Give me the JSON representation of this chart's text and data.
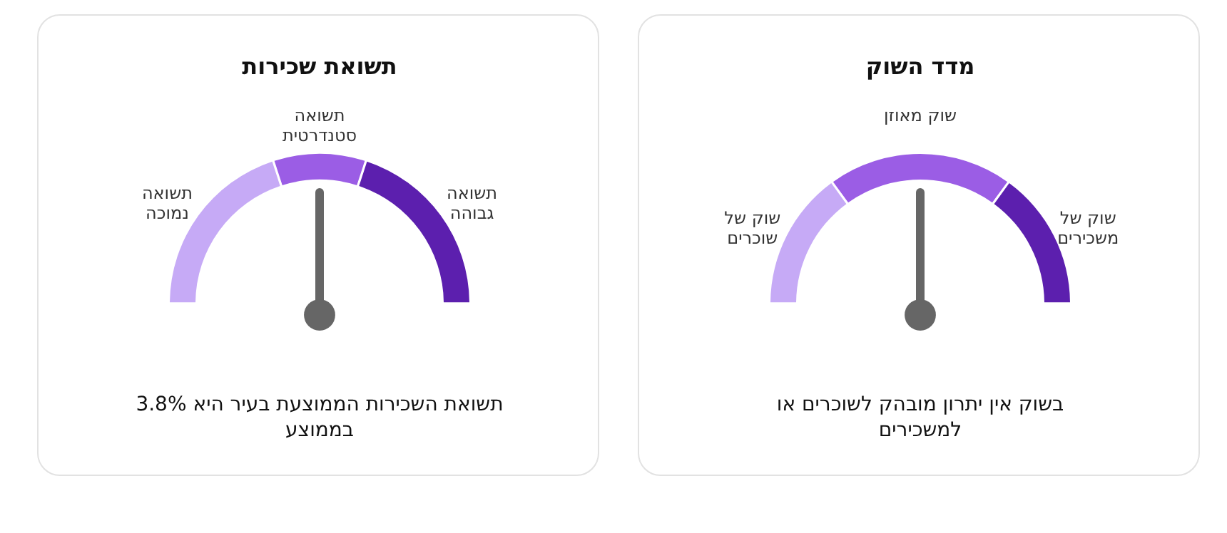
{
  "chart_data": [
    {
      "type": "donut",
      "title": "תשואת שכירות",
      "categories": [
        "תשואה נמוכה",
        "תשואה סטנדרטית",
        "תשואה גבוהה"
      ],
      "values": [
        40,
        20,
        40
      ],
      "colors": [
        "#c6aaf6",
        "#9b5de5",
        "#5c1fae"
      ],
      "needle": "תשואה סטנדרטית",
      "annotations": [
        "תשואת השכירות הממוצעת בעיר היא 3.8% בממוצע"
      ]
    },
    {
      "type": "donut",
      "title": "מדד השוק",
      "categories": [
        "שוק של שוכרים",
        "שוק מאוזן",
        "שוק של משכירים"
      ],
      "values": [
        30,
        40,
        30
      ],
      "colors": [
        "#c6aaf6",
        "#9b5de5",
        "#5c1fae"
      ],
      "needle": "שוק מאוזן",
      "annotations": [
        "בשוק אין יתרון מובהק לשוכרים או למשכירים"
      ]
    }
  ]
}
